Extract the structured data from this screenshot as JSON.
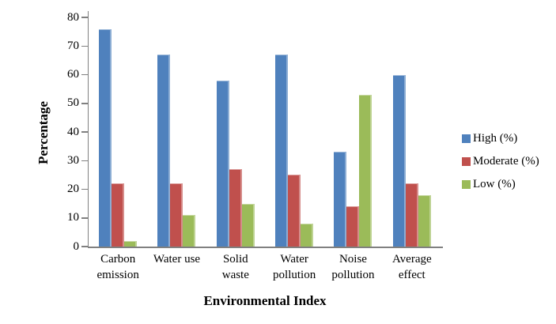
{
  "chart_data": {
    "type": "bar",
    "title": "",
    "xlabel": "Environmental Index",
    "ylabel": "Percentage",
    "ylim": [
      0,
      80
    ],
    "ytick_step": 10,
    "grid": false,
    "legend_position": "right",
    "background": "#FFFFFF",
    "axis_color": "#808080",
    "categories": [
      "Carbon emission",
      "Water use",
      "Solid waste",
      "Water pollution",
      "Noise pollution",
      "Average effect"
    ],
    "series": [
      {
        "name": "High (%)",
        "color": "#4F81BD",
        "values": [
          76,
          67,
          58,
          67,
          33,
          60
        ]
      },
      {
        "name": "Moderate (%)",
        "color": "#C0504D",
        "values": [
          22,
          22,
          27,
          25,
          14,
          22
        ]
      },
      {
        "name": "Low (%)",
        "color": "#9BBB59",
        "values": [
          2,
          11,
          15,
          8,
          53,
          18
        ]
      }
    ]
  }
}
